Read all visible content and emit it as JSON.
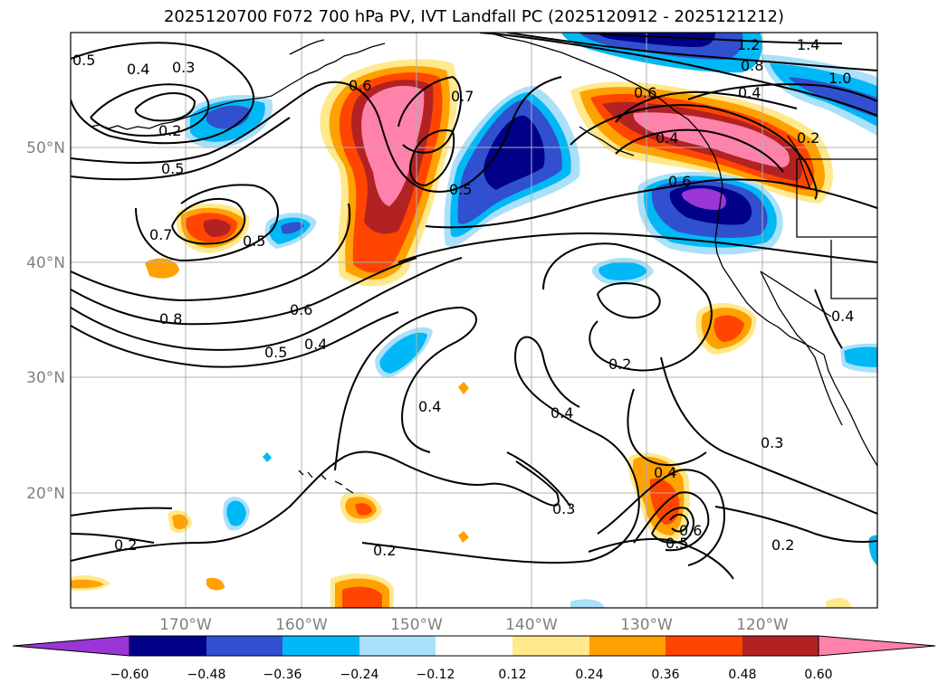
{
  "title": "2025120700 F072 700 hPa PV, IVT Landfall PC (2025120912 - 2025121212)",
  "map": {
    "lat_labels": [
      "50°N",
      "40°N",
      "30°N",
      "20°N"
    ],
    "lon_labels": [
      "170°W",
      "160°W",
      "150°W",
      "140°W",
      "130°W",
      "120°W"
    ],
    "contour_labels": [
      "0.5",
      "0.4",
      "0.3",
      "0.2",
      "0.5",
      "0.7",
      "0.5",
      "0.8",
      "0.6",
      "0.5",
      "0.4",
      "0.6",
      "0.7",
      "0.5",
      "0.4",
      "0.2",
      "0.4",
      "0.3",
      "0.4",
      "0.6",
      "0.5",
      "0.2",
      "1.2",
      "1.4",
      "0.8",
      "1.0",
      "0.4",
      "0.6",
      "0.4",
      "0.2",
      "0.4",
      "0.3",
      "0.2",
      "0.2",
      "0.6"
    ]
  },
  "colorbar": {
    "tick_labels": [
      "−0.60",
      "−0.48",
      "−0.36",
      "−0.24",
      "−0.12",
      "0.12",
      "0.24",
      "0.36",
      "0.48",
      "0.60"
    ],
    "colors": [
      "#9a35d6",
      "#000088",
      "#3050cf",
      "#00b8f5",
      "#aae0fa",
      "#ffffff",
      "#ffe98c",
      "#ffa100",
      "#ff4500",
      "#b22222",
      "#ff82ab"
    ]
  },
  "colors": {
    "neg_deep": "#000088",
    "neg_mid": "#3050cf",
    "neg_light": "#00b8f5",
    "neg_pale": "#aae0fa",
    "pos_pale": "#ffe98c",
    "pos_light": "#ffa100",
    "pos_mid": "#ff4500",
    "pos_deep": "#b22222",
    "pos_peak": "#ff82ab",
    "gridline": "#b0b0b0",
    "contour": "#000000",
    "axis_label": "#808080"
  }
}
